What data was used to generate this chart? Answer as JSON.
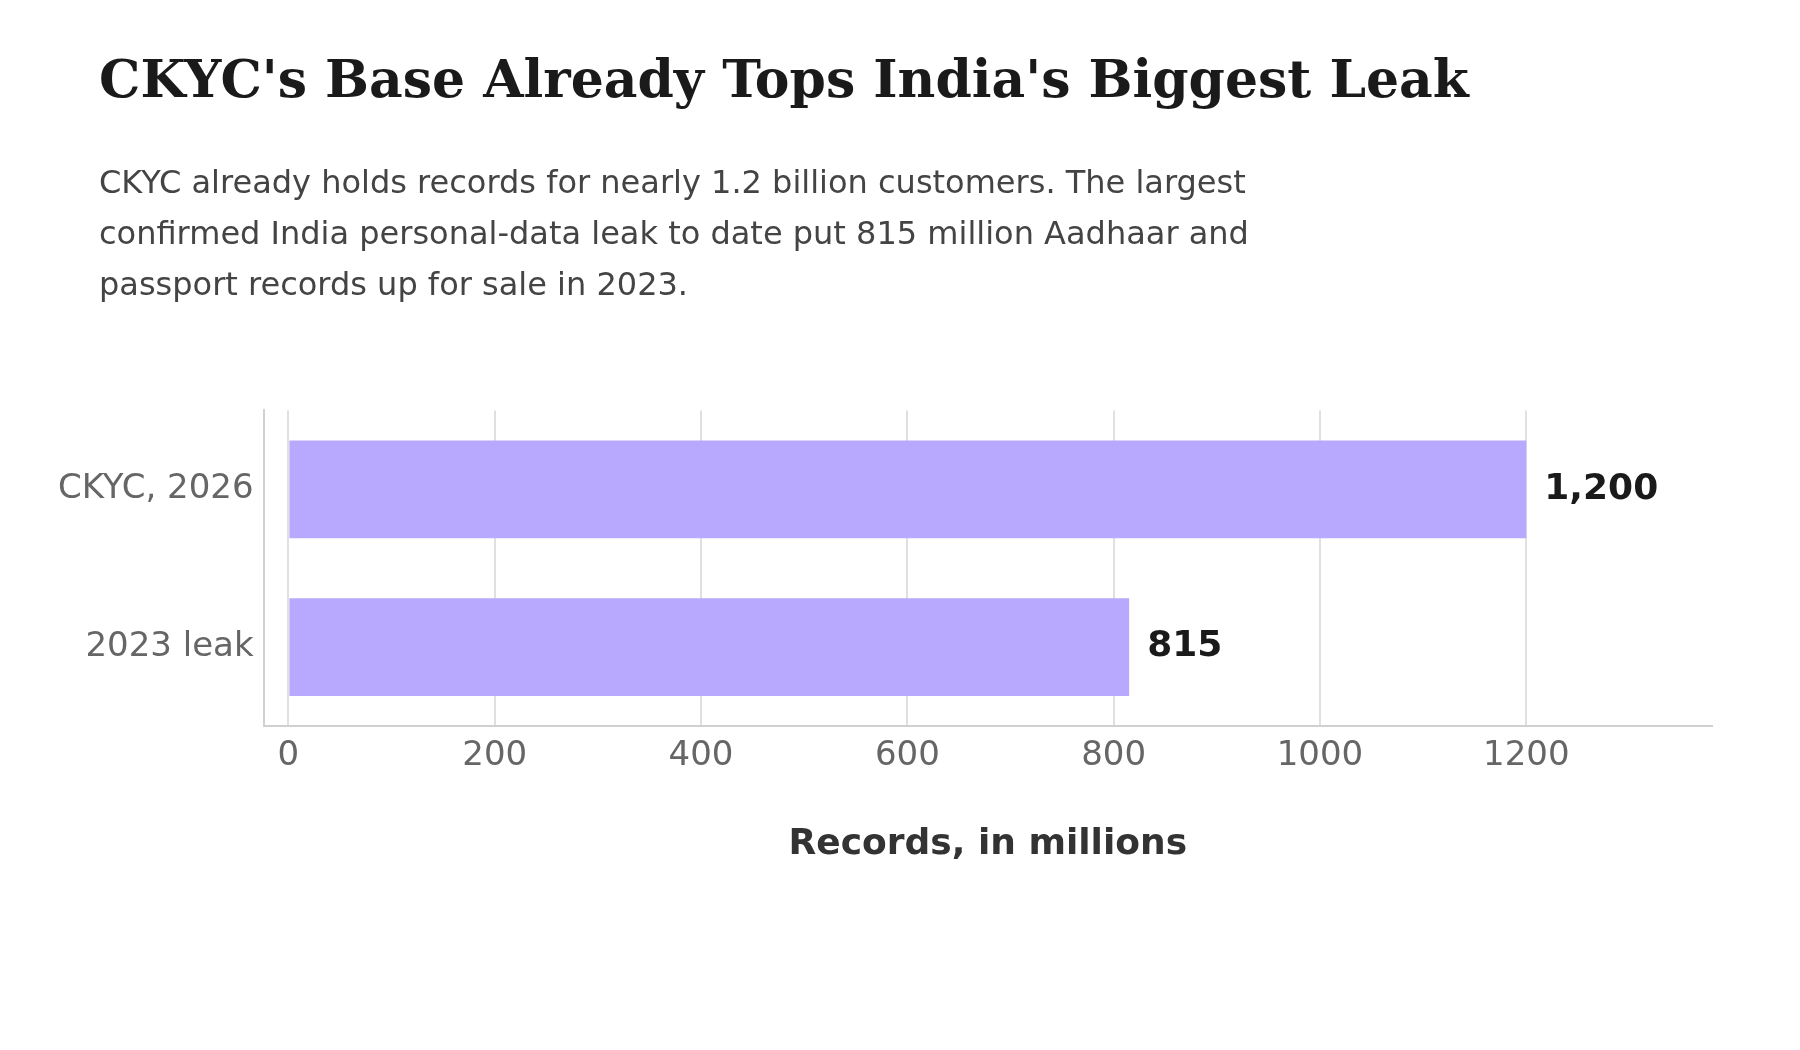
{
  "chart_data": {
    "type": "bar",
    "orientation": "horizontal",
    "title": "CKYC's Base Already Tops India's Biggest Leak",
    "subtitle": "CKYC already holds records for nearly 1.2 billion customers. The largest confirmed India personal-data leak to date put 815 million Aadhaar and passport records up for sale in 2023.",
    "xlabel": "Records, in millions",
    "categories": [
      "CKYC, 2026",
      "2023 leak"
    ],
    "values": [
      1200,
      815
    ],
    "value_labels": [
      "1,200",
      "815"
    ],
    "color": "#b8a9ff",
    "xlim": [
      -24,
      1380
    ],
    "xticks": [
      0,
      200,
      400,
      600,
      800,
      1000,
      1200
    ],
    "grid": "x"
  }
}
